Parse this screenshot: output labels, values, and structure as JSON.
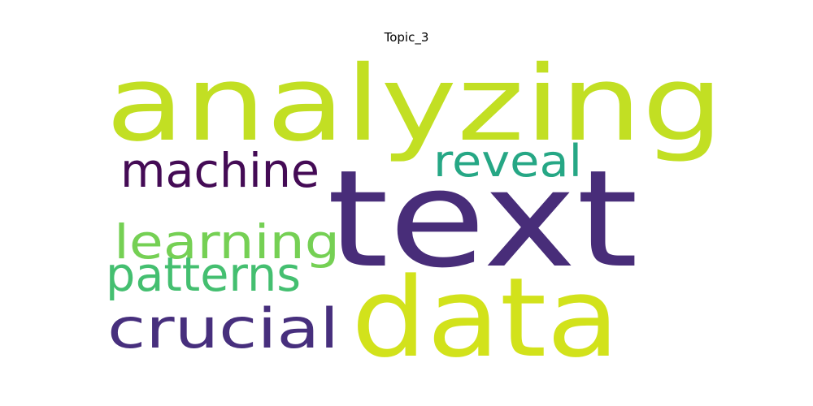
{
  "title": "Topic_3",
  "words": [
    {
      "text": "analyzing",
      "color": "#c2df23"
    },
    {
      "text": "text",
      "color": "#482d79"
    },
    {
      "text": "data",
      "color": "#d2e21b"
    },
    {
      "text": "machine",
      "color": "#440b55"
    },
    {
      "text": "reveal",
      "color": "#26a785"
    },
    {
      "text": "learning",
      "color": "#75d054"
    },
    {
      "text": "patterns",
      "color": "#44bf70"
    },
    {
      "text": "crucial",
      "color": "#472f7d"
    }
  ]
}
